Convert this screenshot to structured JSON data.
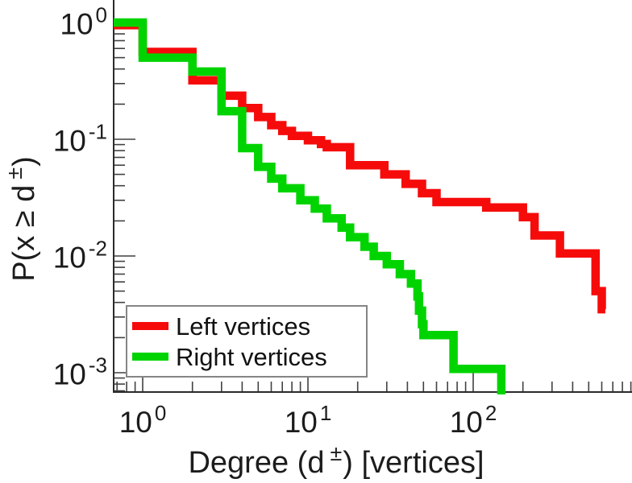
{
  "figure_kind": "loglog-ccdf-step-plot",
  "chart_data": {
    "type": "line",
    "style": "stairs",
    "axes_scale": "log-log",
    "title": "",
    "xlabel": {
      "prefix": "Degree (d",
      "sup": "±",
      "suffix": ") [vertices]"
    },
    "ylabel": {
      "prefix": "P(x ≥ d",
      "sup": "±",
      "suffix": ")"
    },
    "xlim": [
      0.67,
      1000
    ],
    "ylim": [
      0.00068,
      1.33
    ],
    "x_major_ticks": [
      1,
      10,
      100
    ],
    "y_major_ticks": [
      1,
      0.1,
      0.01,
      0.001
    ],
    "x_tick_labels": [
      {
        "base": "10",
        "exp": "0"
      },
      {
        "base": "10",
        "exp": "1"
      },
      {
        "base": "10",
        "exp": "2"
      }
    ],
    "y_tick_labels": [
      {
        "base": "10",
        "exp": "0"
      },
      {
        "base": "10",
        "exp": "-1"
      },
      {
        "base": "10",
        "exp": "-2"
      },
      {
        "base": "10",
        "exp": "-3"
      }
    ],
    "grid": false,
    "legend_position": "lower-left",
    "series": [
      {
        "name": "Left vertices",
        "color": "#f60b0b",
        "start_p": 0.95,
        "steps": [
          [
            1,
            0.56
          ],
          [
            2,
            0.32
          ],
          [
            3,
            0.236
          ],
          [
            4,
            0.185
          ],
          [
            5,
            0.155
          ],
          [
            6,
            0.132
          ],
          [
            7,
            0.118
          ],
          [
            8,
            0.107
          ],
          [
            10,
            0.098
          ],
          [
            12,
            0.091
          ],
          [
            13,
            0.0855
          ],
          [
            18,
            0.06
          ],
          [
            29,
            0.05
          ],
          [
            39,
            0.0415
          ],
          [
            49,
            0.0345
          ],
          [
            60,
            0.029
          ],
          [
            120,
            0.026
          ],
          [
            200,
            0.0215
          ],
          [
            235,
            0.015
          ],
          [
            335,
            0.0105
          ],
          [
            550,
            0.005
          ],
          [
            600,
            0.0035
          ]
        ],
        "end_d": 630,
        "ends_at_axis": false
      },
      {
        "name": "Right vertices",
        "color": "#00d400",
        "start_p": 1.0,
        "steps": [
          [
            1,
            0.5
          ],
          [
            2,
            0.38
          ],
          [
            3,
            0.174
          ],
          [
            4,
            0.084
          ],
          [
            5,
            0.058
          ],
          [
            6,
            0.046
          ],
          [
            7,
            0.038
          ],
          [
            9,
            0.03
          ],
          [
            11,
            0.0255
          ],
          [
            13,
            0.021
          ],
          [
            16,
            0.0175
          ],
          [
            18,
            0.0145
          ],
          [
            22,
            0.012
          ],
          [
            25,
            0.01
          ],
          [
            30,
            0.0085
          ],
          [
            36,
            0.007
          ],
          [
            42,
            0.0058
          ],
          [
            46,
            0.0045
          ],
          [
            47,
            0.0034
          ],
          [
            49,
            0.0026
          ],
          [
            50,
            0.0021
          ],
          [
            76,
            0.00108
          ],
          [
            148,
            null
          ]
        ],
        "end_d": 148,
        "ends_at_axis": true
      }
    ]
  },
  "style_colors": {
    "spine": "#2b2b2b",
    "tick": "#414141",
    "text": "#1c1c1c",
    "legend_border": "#858585"
  }
}
